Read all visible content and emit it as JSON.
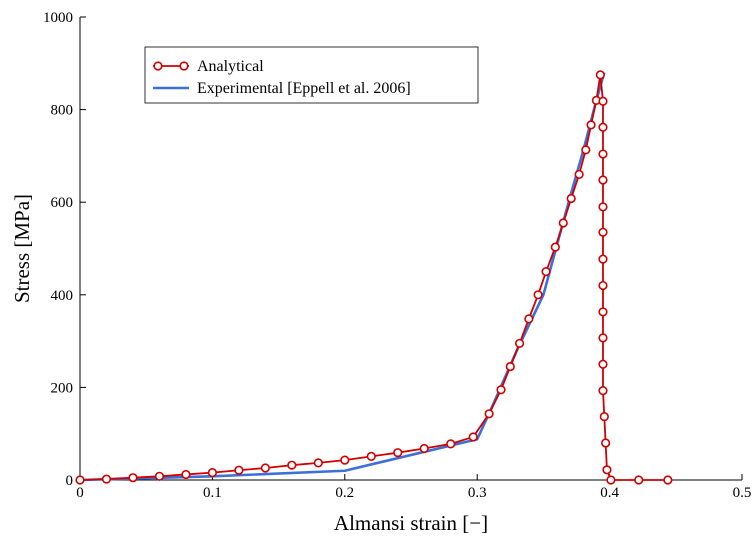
{
  "chart_data": {
    "type": "line",
    "xlabel": "Almansi strain [−]",
    "ylabel": "Stress [MPa]",
    "xlim": [
      0,
      0.5
    ],
    "ylim": [
      0,
      1000
    ],
    "xticks": [
      0,
      0.1,
      0.2,
      0.3,
      0.4,
      0.5
    ],
    "xtick_labels": [
      "0",
      "0.1",
      "0.2",
      "0.3",
      "0.4",
      "0.5"
    ],
    "yticks": [
      0,
      200,
      400,
      600,
      800,
      1000
    ],
    "ytick_labels": [
      "0",
      "200",
      "400",
      "600",
      "800",
      "1000"
    ],
    "grid": false,
    "legend_position": "top-left",
    "series": [
      {
        "name": "Analytical",
        "color": "#d10000",
        "marker": "open-circle",
        "points": [
          [
            0,
            0
          ],
          [
            0.02,
            2
          ],
          [
            0.04,
            5
          ],
          [
            0.06,
            8
          ],
          [
            0.08,
            12
          ],
          [
            0.1,
            16
          ],
          [
            0.12,
            21
          ],
          [
            0.14,
            26
          ],
          [
            0.16,
            32
          ],
          [
            0.18,
            37
          ],
          [
            0.2,
            43
          ],
          [
            0.22,
            51
          ],
          [
            0.24,
            59
          ],
          [
            0.26,
            68
          ],
          [
            0.28,
            78
          ],
          [
            0.297,
            93
          ],
          [
            0.309,
            143
          ],
          [
            0.318,
            195
          ],
          [
            0.325,
            245
          ],
          [
            0.332,
            295
          ],
          [
            0.339,
            348
          ],
          [
            0.346,
            400
          ],
          [
            0.352,
            450
          ],
          [
            0.359,
            503
          ],
          [
            0.365,
            555
          ],
          [
            0.371,
            608
          ],
          [
            0.377,
            660
          ],
          [
            0.382,
            713
          ],
          [
            0.386,
            767
          ],
          [
            0.39,
            820
          ],
          [
            0.393,
            875
          ],
          [
            0.395,
            818
          ],
          [
            0.395,
            762
          ],
          [
            0.395,
            704
          ],
          [
            0.395,
            648
          ],
          [
            0.395,
            590
          ],
          [
            0.395,
            535
          ],
          [
            0.395,
            477
          ],
          [
            0.395,
            420
          ],
          [
            0.395,
            363
          ],
          [
            0.395,
            307
          ],
          [
            0.395,
            250
          ],
          [
            0.395,
            193
          ],
          [
            0.396,
            137
          ],
          [
            0.397,
            80
          ],
          [
            0.398,
            22
          ],
          [
            0.401,
            0
          ],
          [
            0.422,
            0
          ],
          [
            0.444,
            0
          ]
        ]
      },
      {
        "name": "Experimental [Eppell et al. 2006]",
        "color": "#3d6fd9",
        "marker": "none",
        "points": [
          [
            0,
            0
          ],
          [
            0.1,
            8
          ],
          [
            0.2,
            20
          ],
          [
            0.3,
            88
          ],
          [
            0.31,
            150
          ],
          [
            0.33,
            280
          ],
          [
            0.35,
            400
          ],
          [
            0.37,
            610
          ],
          [
            0.38,
            710
          ],
          [
            0.39,
            820
          ],
          [
            0.396,
            880
          ]
        ]
      }
    ]
  }
}
